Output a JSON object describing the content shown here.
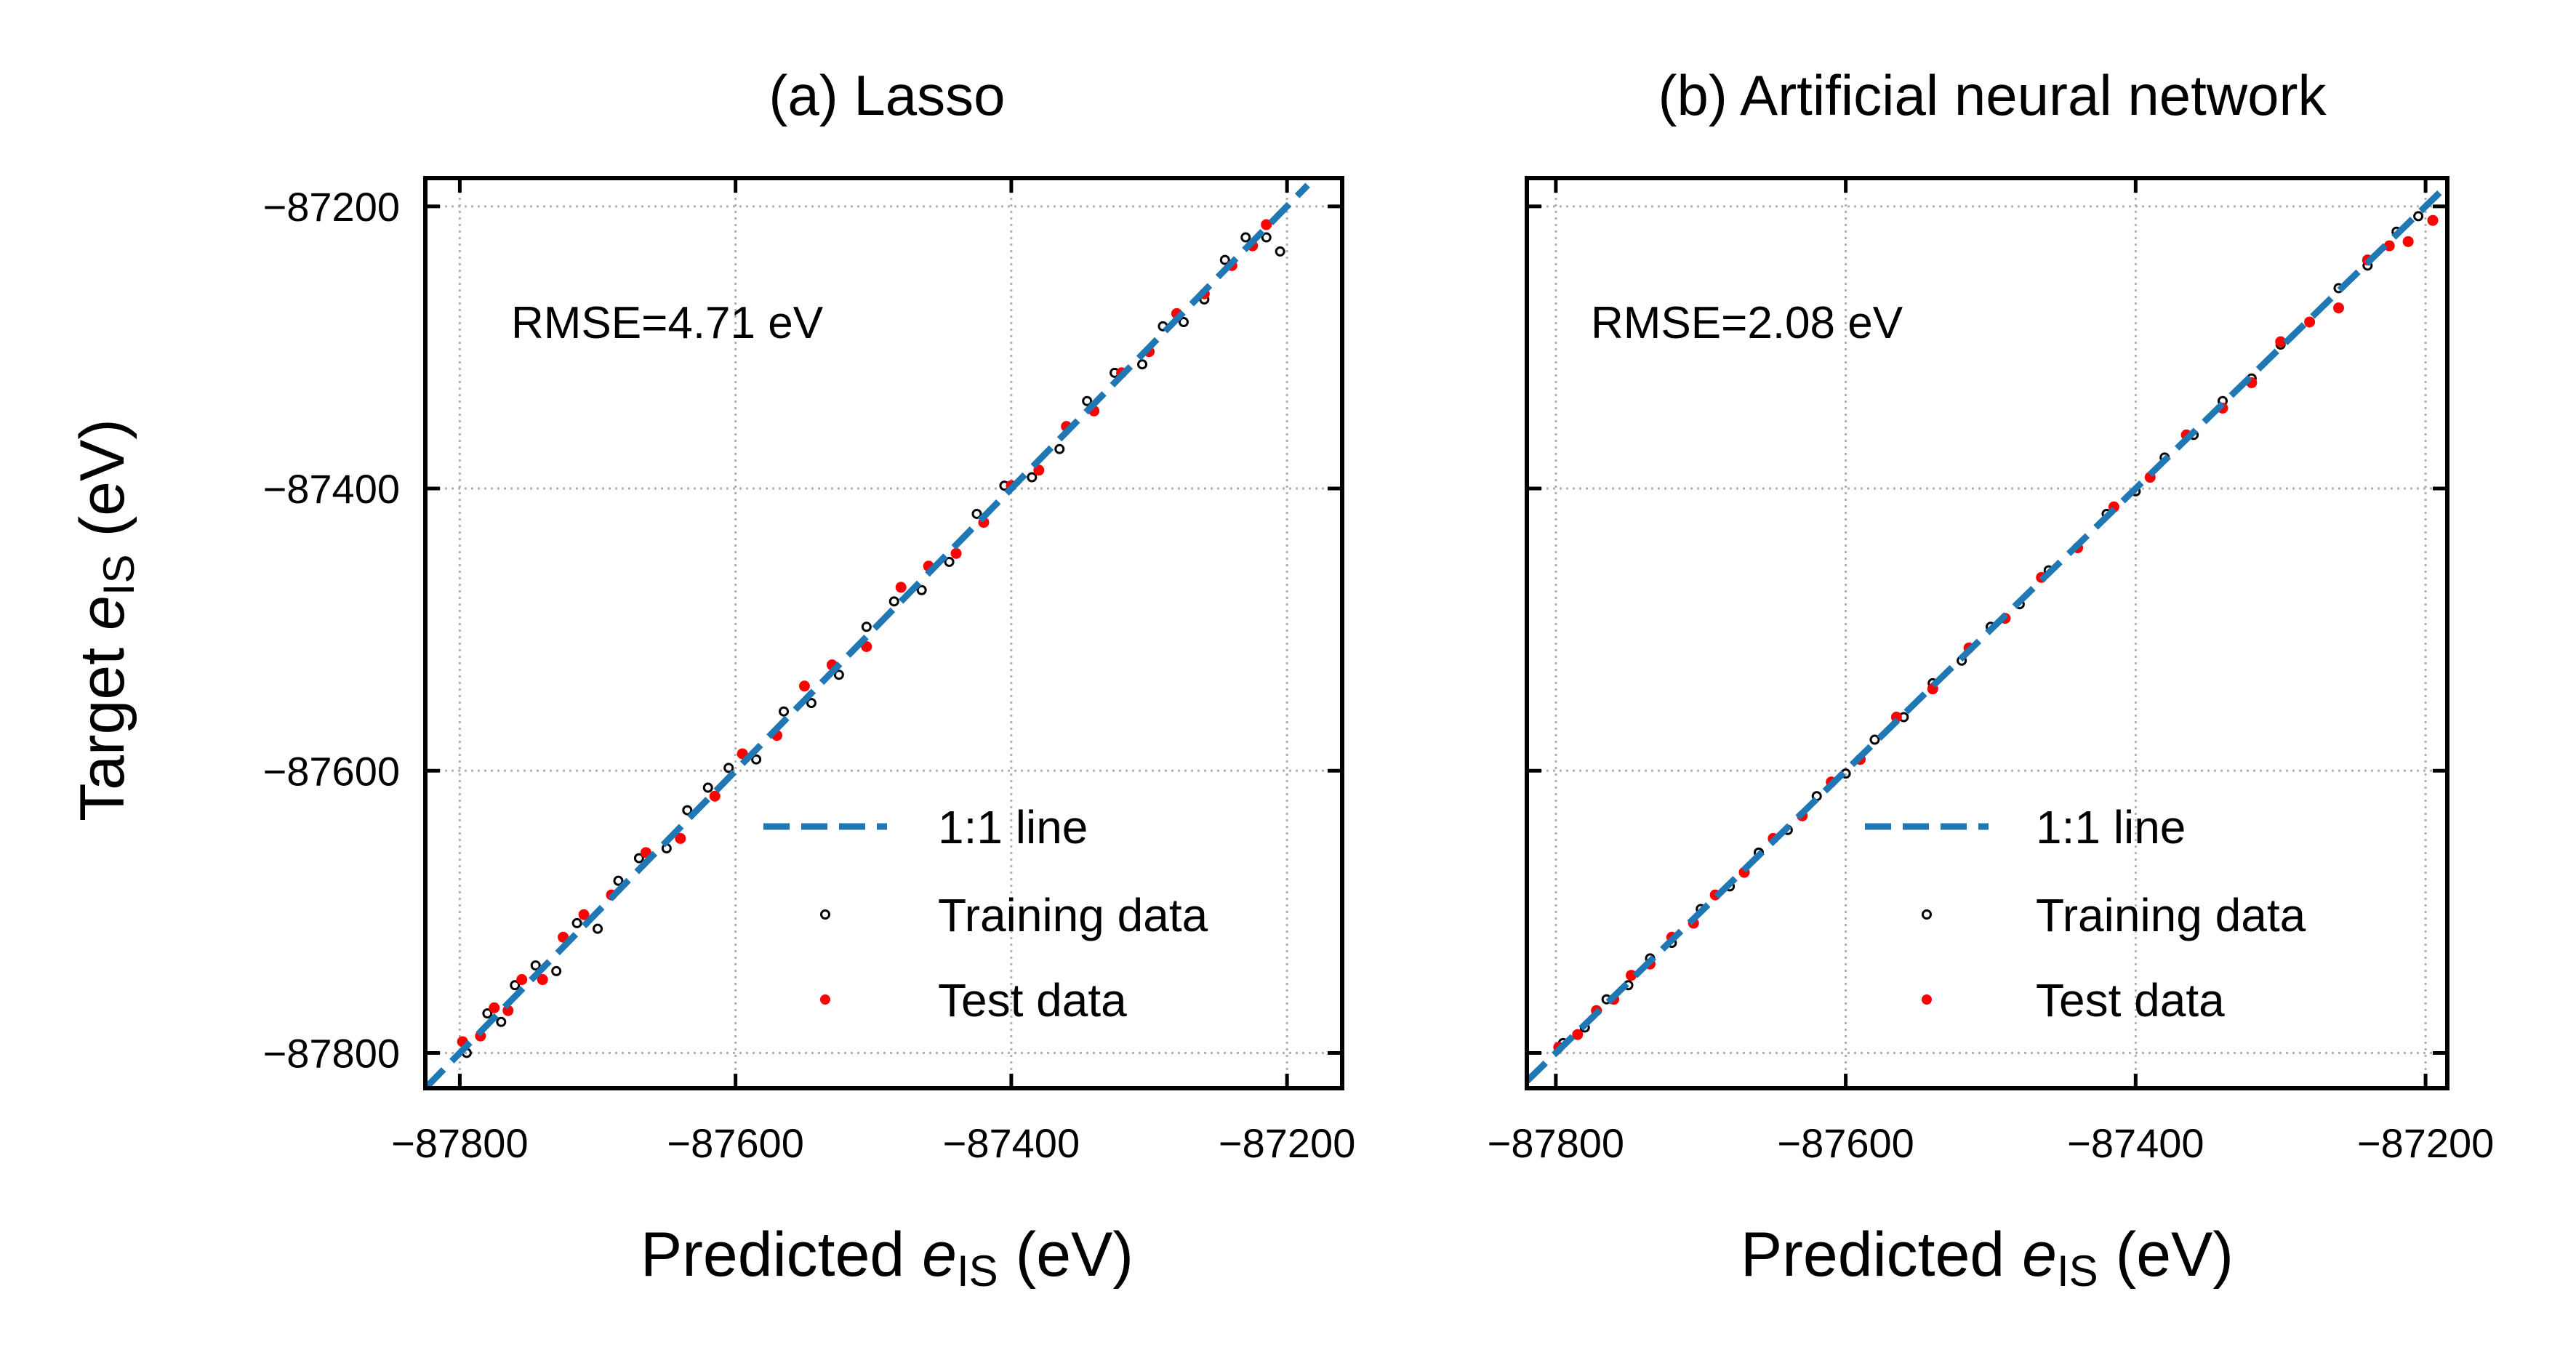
{
  "figure": {
    "ylabel_prefix": "Target ",
    "var_symbol": "e",
    "var_subscript": "IS",
    "unit_suffix": " (eV)",
    "xlabel_prefix": "Predicted "
  },
  "chart_data": [
    {
      "type": "scatter",
      "title": "(a) Lasso",
      "annotation": "RMSE=4.71 eV",
      "xlim": [
        -87825,
        -87160
      ],
      "ylim": [
        -87825,
        -87180
      ],
      "xticks": [
        -87800,
        -87600,
        -87400,
        -87200
      ],
      "yticks": [
        -87800,
        -87600,
        -87400,
        -87200
      ],
      "xtick_labels": [
        "−87800",
        "−87600",
        "−87400",
        "−87200"
      ],
      "ytick_labels": [
        "−87800",
        "−87600",
        "−87400",
        "−87200"
      ],
      "show_y_tick_labels": true,
      "grid": true,
      "legend_position": "lower right",
      "series": [
        {
          "name": "1:1 line",
          "kind": "line",
          "color": "#1f77b4",
          "x": [
            -87825,
            -87185
          ],
          "y": [
            -87825,
            -87185
          ]
        },
        {
          "name": "Training data",
          "kind": "scatter-open",
          "color": "#000000",
          "x": [
            -87795,
            -87780,
            -87770,
            -87760,
            -87745,
            -87730,
            -87715,
            -87700,
            -87685,
            -87670,
            -87650,
            -87635,
            -87620,
            -87605,
            -87585,
            -87565,
            -87545,
            -87525,
            -87505,
            -87485,
            -87465,
            -87445,
            -87425,
            -87405,
            -87385,
            -87365,
            -87345,
            -87325,
            -87305,
            -87290,
            -87275,
            -87260,
            -87245,
            -87230,
            -87215,
            -87205
          ],
          "y": [
            -87800,
            -87772,
            -87778,
            -87752,
            -87738,
            -87742,
            -87708,
            -87712,
            -87678,
            -87662,
            -87655,
            -87628,
            -87612,
            -87598,
            -87592,
            -87558,
            -87552,
            -87532,
            -87498,
            -87480,
            -87472,
            -87452,
            -87418,
            -87398,
            -87392,
            -87372,
            -87338,
            -87318,
            -87312,
            -87285,
            -87282,
            -87266,
            -87238,
            -87222,
            -87222,
            -87232
          ]
        },
        {
          "name": "Test data",
          "kind": "scatter",
          "color": "#ff0000",
          "x": [
            -87798,
            -87785,
            -87775,
            -87765,
            -87755,
            -87740,
            -87725,
            -87710,
            -87690,
            -87665,
            -87640,
            -87615,
            -87595,
            -87570,
            -87550,
            -87530,
            -87505,
            -87480,
            -87460,
            -87440,
            -87420,
            -87400,
            -87380,
            -87360,
            -87340,
            -87320,
            -87300,
            -87280,
            -87260,
            -87240,
            -87225,
            -87215
          ],
          "y": [
            -87792,
            -87788,
            -87768,
            -87770,
            -87748,
            -87748,
            -87718,
            -87702,
            -87688,
            -87658,
            -87648,
            -87618,
            -87588,
            -87575,
            -87540,
            -87525,
            -87512,
            -87470,
            -87455,
            -87446,
            -87424,
            -87398,
            -87387,
            -87356,
            -87345,
            -87318,
            -87303,
            -87276,
            -87262,
            -87242,
            -87228,
            -87213
          ]
        }
      ]
    },
    {
      "type": "scatter",
      "title": "(b) Artificial neural network",
      "annotation": "RMSE=2.08 eV",
      "xlim": [
        -87820,
        -87185
      ],
      "ylim": [
        -87825,
        -87180
      ],
      "xticks": [
        -87800,
        -87600,
        -87400,
        -87200
      ],
      "yticks": [
        -87800,
        -87600,
        -87400,
        -87200
      ],
      "xtick_labels": [
        "−87800",
        "−87600",
        "−87400",
        "−87200"
      ],
      "ytick_labels": [],
      "show_y_tick_labels": false,
      "grid": true,
      "legend_position": "lower right",
      "series": [
        {
          "name": "1:1 line",
          "kind": "line",
          "color": "#1f77b4",
          "x": [
            -87820,
            -87188
          ],
          "y": [
            -87820,
            -87188
          ]
        },
        {
          "name": "Training data",
          "kind": "scatter-open",
          "color": "#000000",
          "x": [
            -87795,
            -87780,
            -87765,
            -87750,
            -87735,
            -87720,
            -87700,
            -87680,
            -87660,
            -87640,
            -87620,
            -87600,
            -87580,
            -87560,
            -87540,
            -87520,
            -87500,
            -87480,
            -87460,
            -87440,
            -87420,
            -87400,
            -87380,
            -87360,
            -87340,
            -87320,
            -87300,
            -87280,
            -87260,
            -87240,
            -87220,
            -87205
          ],
          "y": [
            -87793,
            -87782,
            -87762,
            -87752,
            -87733,
            -87722,
            -87698,
            -87682,
            -87658,
            -87642,
            -87618,
            -87602,
            -87578,
            -87562,
            -87538,
            -87522,
            -87498,
            -87482,
            -87458,
            -87442,
            -87418,
            -87402,
            -87378,
            -87362,
            -87338,
            -87322,
            -87298,
            -87282,
            -87258,
            -87242,
            -87218,
            -87207
          ]
        },
        {
          "name": "Test data",
          "kind": "scatter",
          "color": "#ff0000",
          "x": [
            -87798,
            -87785,
            -87772,
            -87760,
            -87748,
            -87735,
            -87720,
            -87705,
            -87690,
            -87670,
            -87650,
            -87630,
            -87610,
            -87590,
            -87565,
            -87540,
            -87515,
            -87490,
            -87465,
            -87440,
            -87415,
            -87390,
            -87365,
            -87340,
            -87320,
            -87300,
            -87280,
            -87260,
            -87240,
            -87225,
            -87212,
            -87195
          ],
          "y": [
            -87796,
            -87787,
            -87770,
            -87762,
            -87745,
            -87737,
            -87718,
            -87708,
            -87688,
            -87672,
            -87648,
            -87632,
            -87608,
            -87592,
            -87562,
            -87542,
            -87513,
            -87492,
            -87463,
            -87442,
            -87413,
            -87392,
            -87362,
            -87343,
            -87325,
            -87296,
            -87282,
            -87272,
            -87238,
            -87228,
            -87225,
            -87210
          ]
        }
      ]
    }
  ]
}
